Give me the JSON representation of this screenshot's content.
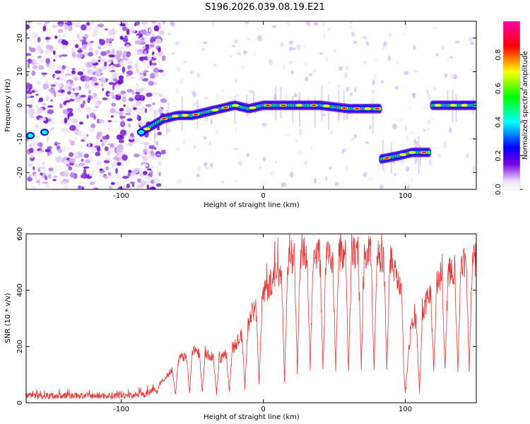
{
  "title": "S196.2026.039.08.19.E21",
  "chart_data": [
    {
      "type": "heatmap",
      "name": "spectrogram",
      "xlabel": "Height of straight line (km)",
      "ylabel": "Frequency (Hz)",
      "xlim": [
        -167,
        150
      ],
      "ylim": [
        -25,
        25
      ],
      "xticks": [
        -100,
        0,
        100
      ],
      "yticks": [
        -20,
        -10,
        0,
        10,
        20
      ],
      "colorbar": {
        "label": "Normalized spectral amplitude",
        "range": [
          0,
          1
        ],
        "ticks": [
          0.0,
          0.2,
          0.4,
          0.6,
          0.8
        ],
        "tick_labels": [
          "0.0",
          "0.2",
          "0.4",
          "0.6",
          "0.8"
        ]
      },
      "signal_track": [
        {
          "x": -86,
          "y": -8
        },
        {
          "x": -70,
          "y": -4
        },
        {
          "x": -60,
          "y": -3
        },
        {
          "x": -50,
          "y": -3
        },
        {
          "x": -40,
          "y": -2
        },
        {
          "x": -30,
          "y": -1
        },
        {
          "x": -20,
          "y": 0
        },
        {
          "x": -10,
          "y": -1
        },
        {
          "x": 0,
          "y": 0
        },
        {
          "x": 20,
          "y": 0
        },
        {
          "x": 40,
          "y": 0
        },
        {
          "x": 60,
          "y": -1
        },
        {
          "x": 83,
          "y": -1
        }
      ],
      "segment_b": [
        {
          "x": 83,
          "y": -16
        },
        {
          "x": 95,
          "y": -15
        },
        {
          "x": 105,
          "y": -14
        },
        {
          "x": 117,
          "y": -14
        }
      ],
      "segment_c": [
        {
          "x": 119,
          "y": 0
        },
        {
          "x": 150,
          "y": 0
        }
      ]
    },
    {
      "type": "line",
      "name": "snr",
      "xlabel": "Height of straight line (km)",
      "ylabel": "SNR (10 * v/v)",
      "xlim": [
        -167,
        150
      ],
      "ylim": [
        0,
        600
      ],
      "xticks": [
        -100,
        0,
        100
      ],
      "yticks": [
        0,
        200,
        400,
        600
      ],
      "color": "#ee3333",
      "envelope": [
        {
          "x": -167,
          "y": 25
        },
        {
          "x": -100,
          "y": 25
        },
        {
          "x": -83,
          "y": 30
        },
        {
          "x": -78,
          "y": 45
        },
        {
          "x": -70,
          "y": 80
        },
        {
          "x": -60,
          "y": 150
        },
        {
          "x": -50,
          "y": 190
        },
        {
          "x": -40,
          "y": 170
        },
        {
          "x": -30,
          "y": 155
        },
        {
          "x": -20,
          "y": 200
        },
        {
          "x": -10,
          "y": 290
        },
        {
          "x": 0,
          "y": 390
        },
        {
          "x": 10,
          "y": 460
        },
        {
          "x": 20,
          "y": 520
        },
        {
          "x": 30,
          "y": 530
        },
        {
          "x": 50,
          "y": 525
        },
        {
          "x": 70,
          "y": 540
        },
        {
          "x": 90,
          "y": 510
        },
        {
          "x": 97,
          "y": 420
        },
        {
          "x": 100,
          "y": 120
        },
        {
          "x": 105,
          "y": 280
        },
        {
          "x": 112,
          "y": 320
        },
        {
          "x": 118,
          "y": 400
        },
        {
          "x": 125,
          "y": 450
        },
        {
          "x": 135,
          "y": 480
        },
        {
          "x": 150,
          "y": 510
        }
      ],
      "dips": [
        {
          "x": -75,
          "y": 30
        },
        {
          "x": -62,
          "y": 20
        },
        {
          "x": -52,
          "y": 25
        },
        {
          "x": -43,
          "y": 30
        },
        {
          "x": -33,
          "y": 25
        },
        {
          "x": -24,
          "y": 35
        },
        {
          "x": -13,
          "y": 45
        },
        {
          "x": -3,
          "y": 55
        },
        {
          "x": 15,
          "y": 70
        },
        {
          "x": 24,
          "y": 100
        },
        {
          "x": 33,
          "y": 110
        },
        {
          "x": 42,
          "y": 105
        },
        {
          "x": 51,
          "y": 110
        },
        {
          "x": 60,
          "y": 110
        },
        {
          "x": 69,
          "y": 110
        },
        {
          "x": 78,
          "y": 110
        },
        {
          "x": 87,
          "y": 110
        },
        {
          "x": 100,
          "y": 25
        },
        {
          "x": 110,
          "y": 30
        },
        {
          "x": 120,
          "y": 100
        },
        {
          "x": 128,
          "y": 105
        },
        {
          "x": 137,
          "y": 110
        },
        {
          "x": 145,
          "y": 110
        }
      ]
    }
  ]
}
